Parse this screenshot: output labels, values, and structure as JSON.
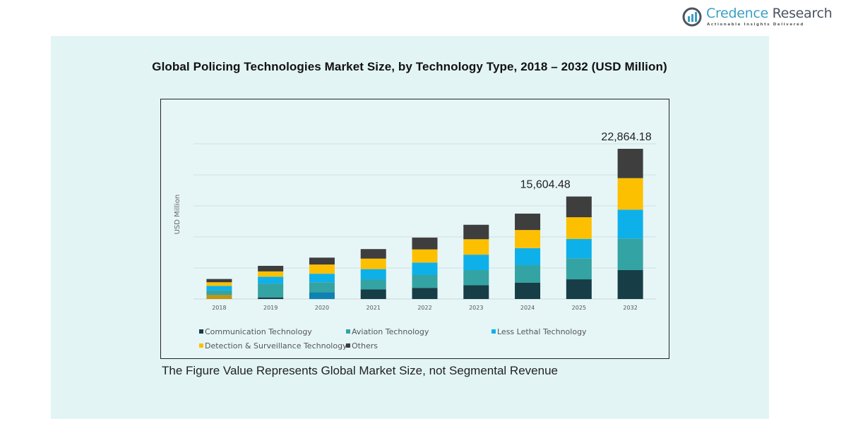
{
  "brand": {
    "name_part1": "Credence",
    "name_part2": " Research",
    "tagline": "Actionable Insights Delivered",
    "colors": {
      "primary": "#3a9fc4",
      "secondary": "#4a5560"
    }
  },
  "footnote": "The Figure Value Represents Global Market Size, not Segmental Revenue",
  "chart_data": {
    "type": "bar",
    "stacked": true,
    "title": "Global Policing Technologies Market Size, by Technology Type, 2018 – 2032 (USD Million)",
    "xlabel": "",
    "ylabel": "USD Million",
    "categories": [
      "2018",
      "2019",
      "2020",
      "2021",
      "2022",
      "2023",
      "2024",
      "2025",
      "2032"
    ],
    "grid": true,
    "legend_position": "bottom",
    "ylim": [
      0,
      25000
    ],
    "series": [
      {
        "name": "Communication Technology",
        "color": "#173d47",
        "values": [
          600,
          250,
          1050,
          1450,
          1700,
          2100,
          2500,
          3000,
          4400
        ]
      },
      {
        "name": "Aviation Technology",
        "color": "#34a3a3",
        "values": [
          700,
          2100,
          1500,
          1550,
          1950,
          2300,
          2650,
          3200,
          4800
        ]
      },
      {
        "name": "Less Lethal Technology",
        "color": "#0eb0ea",
        "values": [
          700,
          1050,
          1300,
          1550,
          1900,
          2350,
          2600,
          2950,
          4400
        ]
      },
      {
        "name": "Detection & Surveillance Technology",
        "color": "#fdc000",
        "values": [
          550,
          800,
          1400,
          1600,
          2000,
          2350,
          2750,
          3300,
          4800
        ]
      },
      {
        "name": "Others",
        "color": "#3e3e3e",
        "values": [
          500,
          850,
          1050,
          1450,
          1800,
          2200,
          2500,
          3154.48,
          4464.18
        ]
      }
    ],
    "segment_overrides": {
      "2018_bottom_color": "#c4950c",
      "2020_bottom_color": "#0e82b0"
    },
    "annotations": [
      {
        "category": "2025",
        "text": "15,604.48"
      },
      {
        "category": "2032",
        "text": "22,864.18"
      }
    ]
  }
}
